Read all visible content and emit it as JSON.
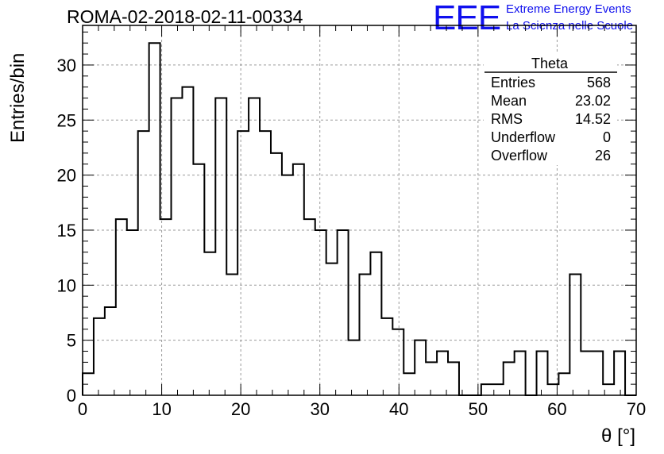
{
  "header": {
    "title": "ROMA-02-2018-02-11-00334"
  },
  "logo": {
    "mark": "EEE",
    "line1": "Extreme Energy Events",
    "line2": "La Scienza nelle Scuole",
    "color": "#1010ee"
  },
  "stats": {
    "name": "Theta",
    "rows": [
      {
        "label": "Entries",
        "value": "568"
      },
      {
        "label": "Mean",
        "value": "23.02"
      },
      {
        "label": "RMS",
        "value": "14.52"
      },
      {
        "label": "Underflow",
        "value": "0"
      },
      {
        "label": "Overflow",
        "value": "26"
      }
    ]
  },
  "chart_data": {
    "type": "histogram",
    "xlabel": "θ [°]",
    "ylabel": "Entries/bin",
    "xlim": [
      0,
      70
    ],
    "ylim": [
      0,
      33.6
    ],
    "bin_width": 1.4,
    "x_ticks": [
      0,
      10,
      20,
      30,
      40,
      50,
      60,
      70
    ],
    "y_ticks": [
      0,
      5,
      10,
      15,
      20,
      25,
      30
    ],
    "grid": true,
    "bin_edges_start": 0,
    "values": [
      2,
      7,
      8,
      16,
      15,
      24,
      32,
      16,
      27,
      28,
      21,
      13,
      27,
      11,
      24,
      27,
      24,
      22,
      20,
      21,
      16,
      15,
      12,
      15,
      5,
      11,
      13,
      7,
      6,
      2,
      5,
      3,
      4,
      3,
      0,
      0,
      1,
      1,
      3,
      4,
      0,
      4,
      1,
      2,
      11,
      4,
      4,
      1,
      4,
      0
    ]
  }
}
